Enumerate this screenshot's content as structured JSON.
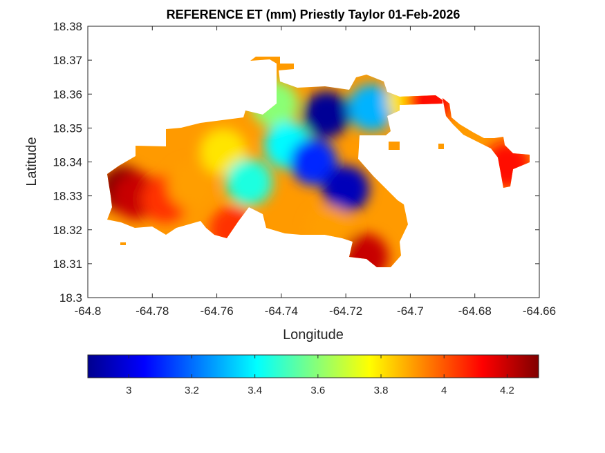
{
  "chart_data": {
    "type": "heatmap",
    "title": "REFERENCE ET (mm) Priestly Taylor 01-Feb-2026",
    "xlabel": "Longitude",
    "ylabel": "Latitude",
    "xlim": [
      -64.8,
      -64.66
    ],
    "ylim": [
      18.3,
      18.38
    ],
    "x_ticks": [
      -64.8,
      -64.78,
      -64.76,
      -64.74,
      -64.72,
      -64.7,
      -64.68,
      -64.66
    ],
    "x_tick_labels": [
      "-64.8",
      "-64.78",
      "-64.76",
      "-64.74",
      "-64.72",
      "-64.7",
      "-64.68",
      "-64.66"
    ],
    "y_ticks": [
      18.3,
      18.31,
      18.32,
      18.33,
      18.34,
      18.35,
      18.36,
      18.37,
      18.38
    ],
    "y_tick_labels": [
      "18.3",
      "18.31",
      "18.32",
      "18.33",
      "18.34",
      "18.35",
      "18.36",
      "18.37",
      "18.38"
    ],
    "grid": false,
    "colormap": "jet",
    "colorbar": {
      "orientation": "horizontal",
      "placement": "bottom",
      "range": [
        2.87,
        4.3
      ],
      "ticks": [
        3,
        3.2,
        3.4,
        3.6,
        3.8,
        4,
        4.2
      ],
      "tick_labels": [
        "3",
        "3.2",
        "3.4",
        "3.6",
        "3.8",
        "4",
        "4.2"
      ]
    },
    "regions": [
      {
        "lon": -64.789,
        "lat": 18.332,
        "value": 4.3
      },
      {
        "lon": -64.785,
        "lat": 18.33,
        "value": 4.2
      },
      {
        "lon": -64.776,
        "lat": 18.329,
        "value": 4.05
      },
      {
        "lon": -64.768,
        "lat": 18.333,
        "value": 3.9
      },
      {
        "lon": -64.758,
        "lat": 18.343,
        "value": 3.8
      },
      {
        "lon": -64.75,
        "lat": 18.334,
        "value": 3.45
      },
      {
        "lon": -64.742,
        "lat": 18.357,
        "value": 3.6
      },
      {
        "lon": -64.738,
        "lat": 18.345,
        "value": 3.4
      },
      {
        "lon": -64.73,
        "lat": 18.34,
        "value": 3.1
      },
      {
        "lon": -64.726,
        "lat": 18.354,
        "value": 2.9
      },
      {
        "lon": -64.72,
        "lat": 18.332,
        "value": 2.95
      },
      {
        "lon": -64.712,
        "lat": 18.356,
        "value": 3.3
      },
      {
        "lon": -64.725,
        "lat": 18.32,
        "value": 3.9
      },
      {
        "lon": -64.714,
        "lat": 18.312,
        "value": 4.2
      },
      {
        "lon": -64.755,
        "lat": 18.32,
        "value": 4.05
      },
      {
        "lon": -64.7,
        "lat": 18.358,
        "value": 3.8
      },
      {
        "lon": -64.694,
        "lat": 18.358,
        "value": 4.1
      },
      {
        "lon": -64.67,
        "lat": 18.339,
        "value": 4.1
      }
    ]
  }
}
